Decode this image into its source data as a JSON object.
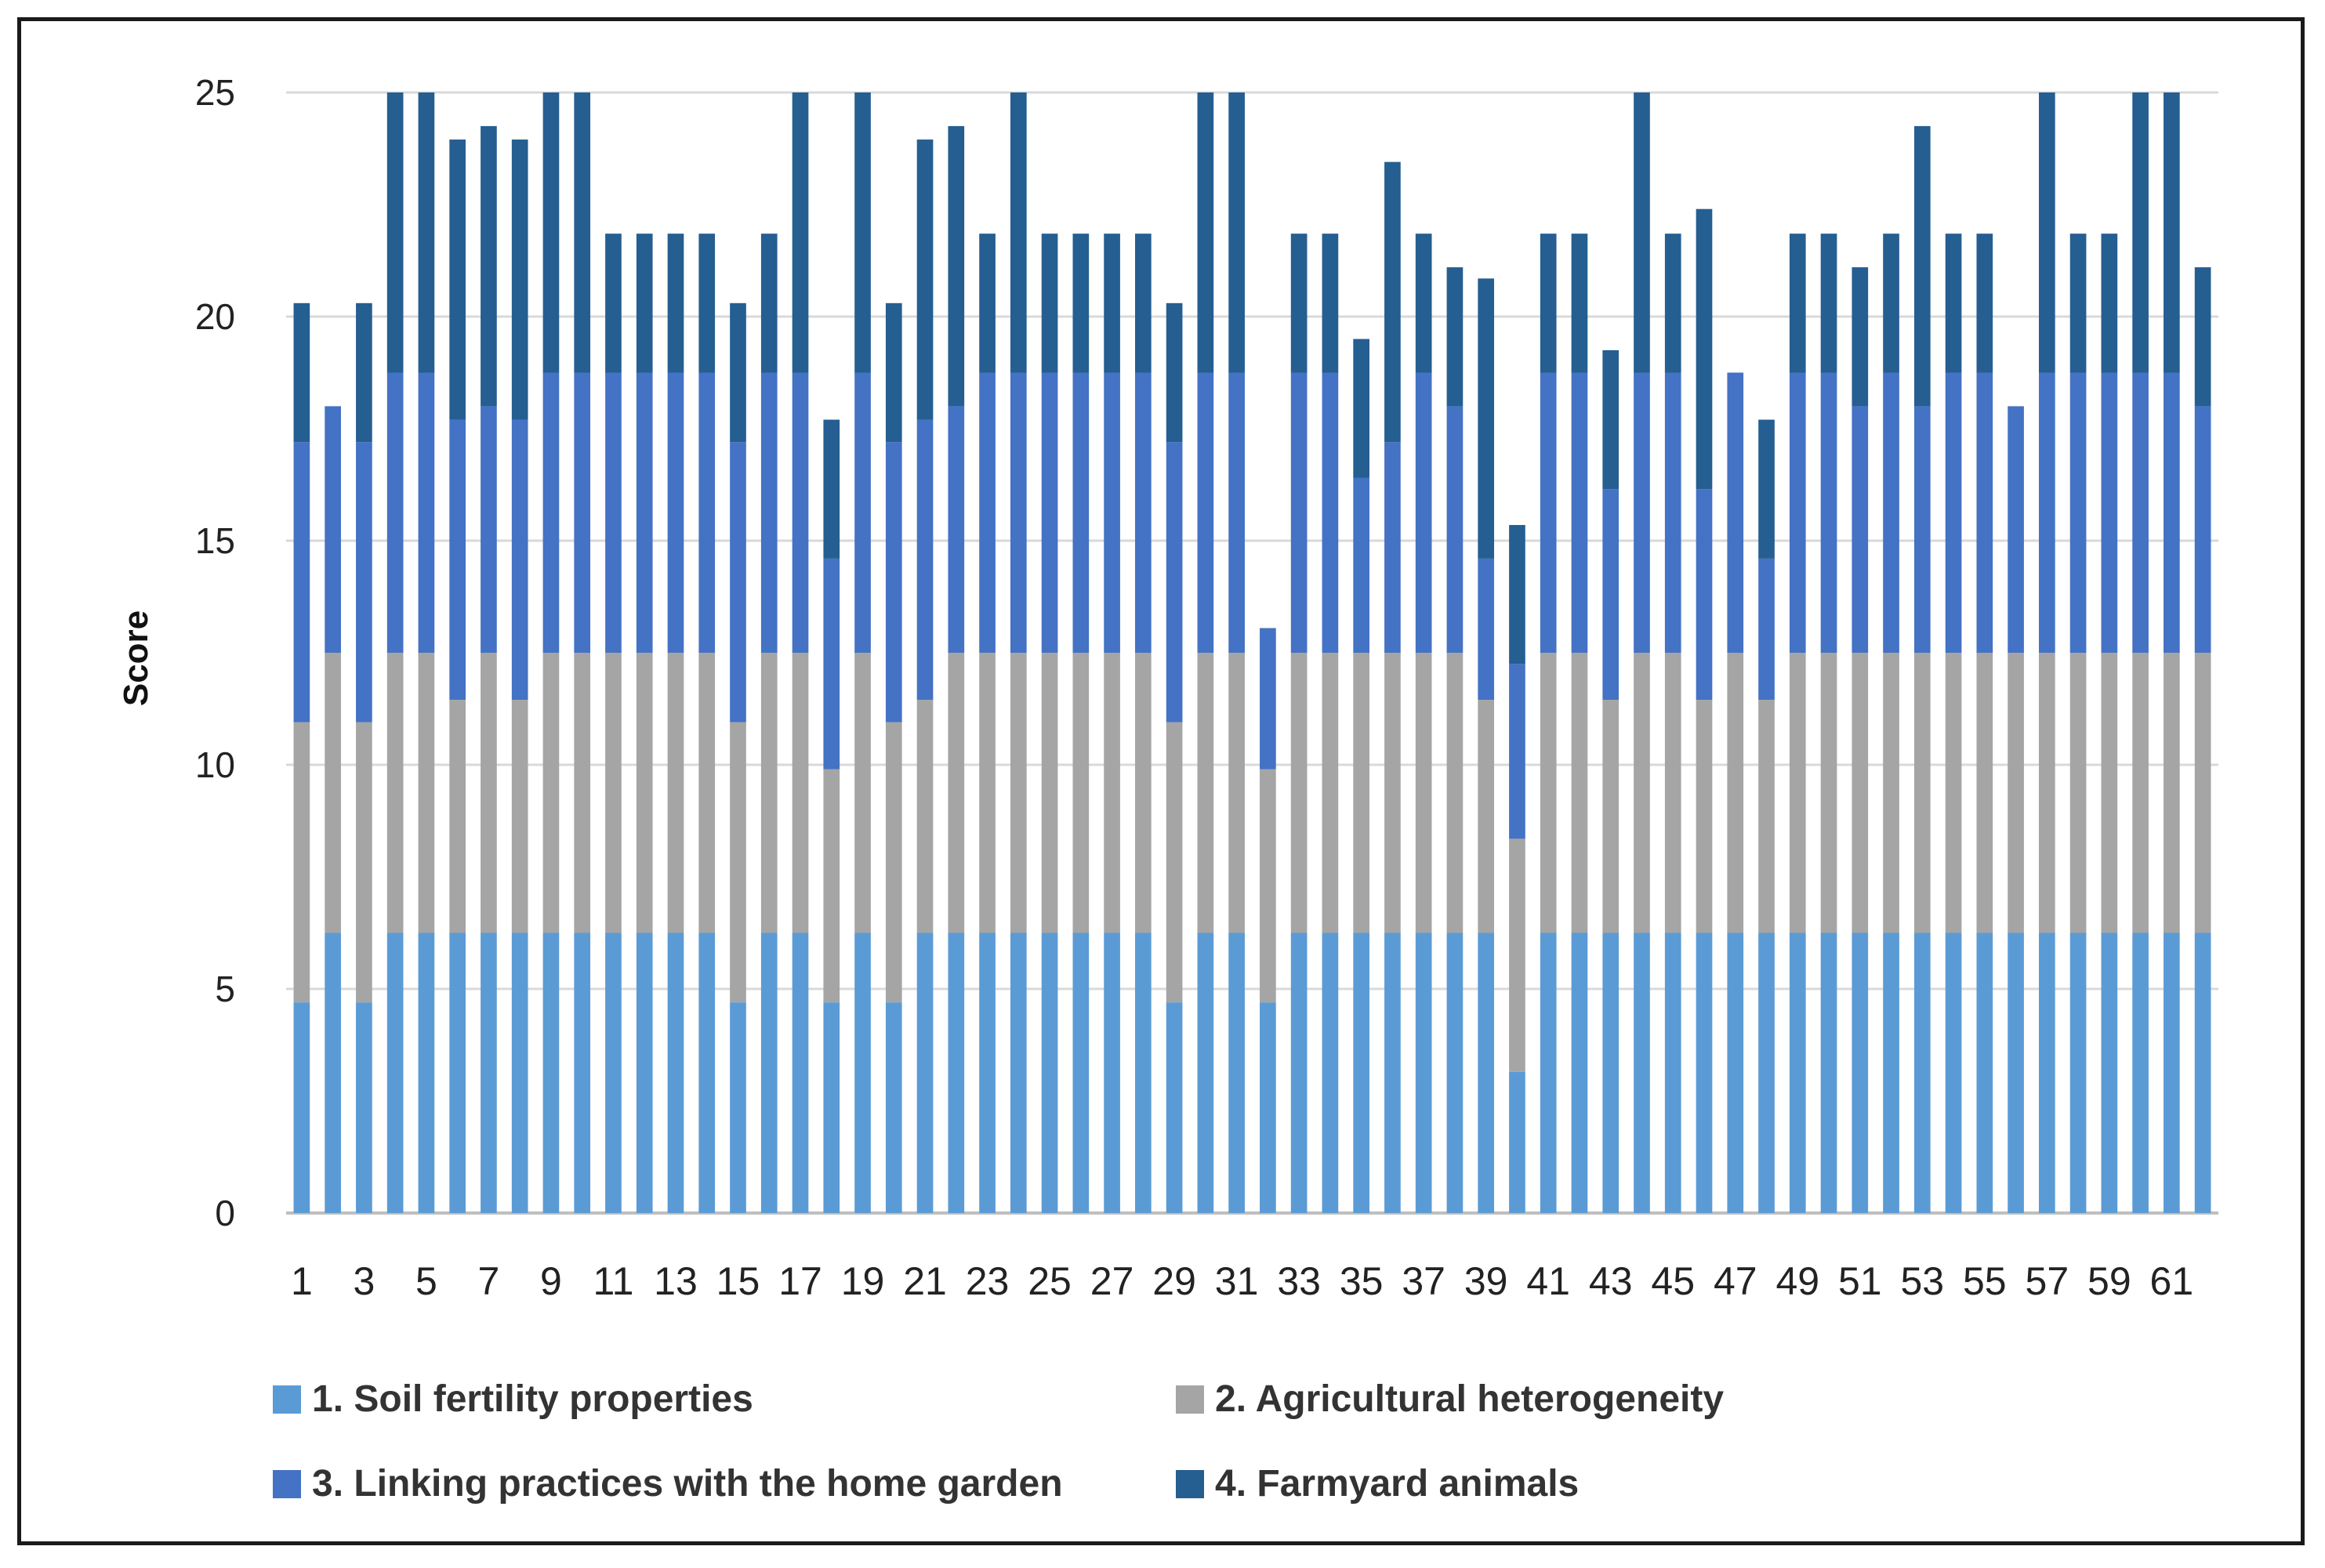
{
  "chart_data": {
    "type": "stacked-bar",
    "title": "",
    "xlabel": "",
    "ylabel": "Score",
    "ylim": [
      0,
      25
    ],
    "yticks": [
      0,
      5,
      10,
      15,
      20,
      25
    ],
    "grid": true,
    "legend_position": "bottom",
    "categories": [
      "1",
      "2",
      "3",
      "4",
      "5",
      "6",
      "7",
      "8",
      "9",
      "10",
      "11",
      "12",
      "13",
      "14",
      "15",
      "16",
      "17",
      "18",
      "19",
      "20",
      "21",
      "22",
      "23",
      "24",
      "25",
      "26",
      "27",
      "28",
      "29",
      "30",
      "31",
      "32",
      "33",
      "34",
      "35",
      "36",
      "37",
      "38",
      "39",
      "40",
      "41",
      "42",
      "43",
      "44",
      "45",
      "46",
      "47",
      "48",
      "49",
      "50",
      "51",
      "52",
      "53",
      "54",
      "55",
      "56",
      "57",
      "58",
      "59",
      "60",
      "61",
      "62"
    ],
    "xtick_labels": [
      "1",
      "",
      "3",
      "",
      "5",
      "",
      "7",
      "",
      "9",
      "",
      "11",
      "",
      "13",
      "",
      "15",
      "",
      "17",
      "",
      "19",
      "",
      "21",
      "",
      "23",
      "",
      "25",
      "",
      "27",
      "",
      "29",
      "",
      "31",
      "",
      "33",
      "",
      "35",
      "",
      "37",
      "",
      "39",
      "",
      "41",
      "",
      "43",
      "",
      "45",
      "",
      "47",
      "",
      "49",
      "",
      "51",
      "",
      "53",
      "",
      "55",
      "",
      "57",
      "",
      "59",
      "",
      "61",
      ""
    ],
    "series": [
      {
        "name": "1. Soil fertility properties",
        "color": "#5b9bd5",
        "values": [
          4.7,
          6.25,
          4.7,
          6.25,
          6.25,
          6.25,
          6.25,
          6.25,
          6.25,
          6.25,
          6.25,
          6.25,
          6.25,
          6.25,
          4.7,
          6.25,
          6.25,
          4.7,
          6.25,
          4.7,
          6.25,
          6.25,
          6.25,
          6.25,
          6.25,
          6.25,
          6.25,
          6.25,
          4.7,
          6.25,
          6.25,
          4.7,
          6.25,
          6.25,
          6.25,
          6.25,
          6.25,
          6.25,
          6.25,
          3.15,
          6.25,
          6.25,
          6.25,
          6.25,
          6.25,
          6.25,
          6.25,
          6.25,
          6.25,
          6.25,
          6.25,
          6.25,
          6.25,
          6.25,
          6.25,
          6.25,
          6.25,
          6.25,
          6.25,
          6.25,
          6.25,
          6.25
        ]
      },
      {
        "name": "2. Agricultural heterogeneity",
        "color": "#a5a5a5",
        "values": [
          6.25,
          6.25,
          6.25,
          6.25,
          6.25,
          5.2,
          6.25,
          5.2,
          6.25,
          6.25,
          6.25,
          6.25,
          6.25,
          6.25,
          6.25,
          6.25,
          6.25,
          5.2,
          6.25,
          6.25,
          5.2,
          6.25,
          6.25,
          6.25,
          6.25,
          6.25,
          6.25,
          6.25,
          6.25,
          6.25,
          6.25,
          5.2,
          6.25,
          6.25,
          6.25,
          6.25,
          6.25,
          6.25,
          5.2,
          5.2,
          6.25,
          6.25,
          5.2,
          6.25,
          6.25,
          5.2,
          6.25,
          5.2,
          6.25,
          6.25,
          6.25,
          6.25,
          6.25,
          6.25,
          6.25,
          6.25,
          6.25,
          6.25,
          6.25,
          6.25,
          6.25,
          6.25
        ]
      },
      {
        "name": "3. Linking practices with the home garden",
        "color": "#4472c4",
        "values": [
          6.25,
          5.5,
          6.25,
          6.25,
          6.25,
          6.25,
          5.5,
          6.25,
          6.25,
          6.25,
          6.25,
          6.25,
          6.25,
          6.25,
          6.25,
          6.25,
          6.25,
          4.7,
          6.25,
          6.25,
          6.25,
          5.5,
          6.25,
          6.25,
          6.25,
          6.25,
          6.25,
          6.25,
          6.25,
          6.25,
          6.25,
          3.15,
          6.25,
          6.25,
          3.9,
          4.7,
          6.25,
          5.5,
          3.15,
          3.9,
          6.25,
          6.25,
          4.7,
          6.25,
          6.25,
          4.7,
          6.25,
          3.15,
          6.25,
          6.25,
          5.5,
          6.25,
          5.5,
          6.25,
          6.25,
          5.5,
          6.25,
          6.25,
          6.25,
          6.25,
          6.25,
          5.5
        ]
      },
      {
        "name": "4. Farmyard animals",
        "color": "#255e91",
        "values": [
          3.1,
          0,
          3.1,
          6.25,
          6.25,
          6.25,
          6.25,
          6.25,
          6.25,
          6.25,
          3.1,
          3.1,
          3.1,
          3.1,
          3.1,
          3.1,
          6.25,
          3.1,
          6.25,
          3.1,
          6.25,
          6.25,
          3.1,
          6.25,
          3.1,
          3.1,
          3.1,
          3.1,
          3.1,
          6.25,
          6.25,
          0,
          3.1,
          3.1,
          3.1,
          6.25,
          3.1,
          3.1,
          6.25,
          3.1,
          3.1,
          3.1,
          3.1,
          6.25,
          3.1,
          6.25,
          0,
          3.1,
          3.1,
          3.1,
          3.1,
          3.1,
          6.25,
          3.1,
          3.1,
          0,
          6.25,
          3.1,
          3.1,
          6.25,
          6.25,
          3.1
        ]
      }
    ]
  }
}
